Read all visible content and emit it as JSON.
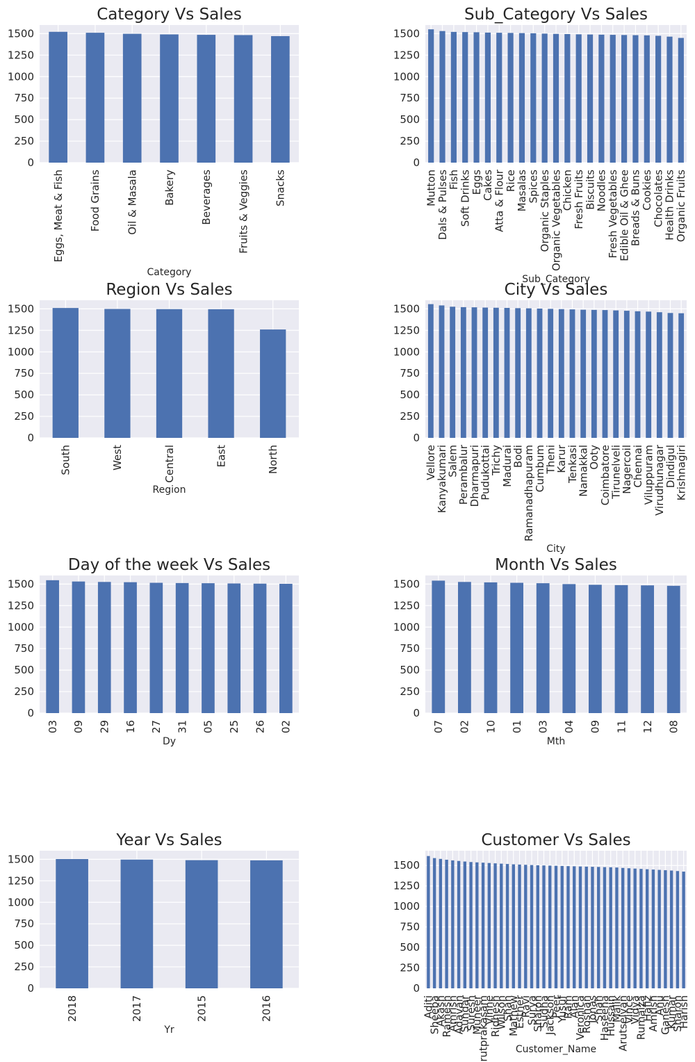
{
  "colors": {
    "bar": "#4c72b0",
    "plot_bg": "#eaeaf2",
    "grid": "#ffffff",
    "text": "#262626"
  },
  "chart_data": [
    {
      "type": "bar",
      "title": "Category Vs Sales",
      "xlabel": "Category",
      "ylabel": "",
      "ylim": [
        0,
        1600
      ],
      "yticks": [
        0,
        250,
        500,
        750,
        1000,
        1250,
        1500
      ],
      "grid": true,
      "categories": [
        "Eggs, Meat & Fish",
        "Food Grains",
        "Oil & Masala",
        "Bakery",
        "Beverages",
        "Fruits & Veggies",
        "Snacks"
      ],
      "values": [
        1521,
        1510,
        1498,
        1491,
        1486,
        1483,
        1471
      ]
    },
    {
      "type": "bar",
      "title": "Sub_Category Vs Sales",
      "xlabel": "Sub_Category",
      "ylabel": "",
      "ylim": [
        0,
        1600
      ],
      "yticks": [
        0,
        250,
        500,
        750,
        1000,
        1250,
        1500
      ],
      "grid": true,
      "categories": [
        "Mutton",
        "Dals & Pulses",
        "Fish",
        "Soft Drinks",
        "Eggs",
        "Cakes",
        "Atta & Flour",
        "Rice",
        "Masalas",
        "Spices",
        "Organic Staples",
        "Organic Vegetables",
        "Chicken",
        "Fresh Fruits",
        "Biscuits",
        "Noodles",
        "Fresh Vegetables",
        "Edible Oil & Ghee",
        "Breads & Buns",
        "Cookies",
        "Chocolates",
        "Health Drinks",
        "Organic Fruits"
      ],
      "values": [
        1550,
        1530,
        1520,
        1518,
        1516,
        1512,
        1510,
        1508,
        1506,
        1504,
        1500,
        1497,
        1495,
        1492,
        1490,
        1488,
        1486,
        1484,
        1482,
        1480,
        1475,
        1465,
        1450
      ]
    },
    {
      "type": "bar",
      "title": "Region Vs Sales",
      "xlabel": "Region",
      "ylabel": "",
      "ylim": [
        0,
        1600
      ],
      "yticks": [
        0,
        250,
        500,
        750,
        1000,
        1250,
        1500
      ],
      "grid": true,
      "categories": [
        "South",
        "West",
        "Central",
        "East",
        "North"
      ],
      "values": [
        1510,
        1499,
        1497,
        1496,
        1260
      ]
    },
    {
      "type": "bar",
      "title": "City Vs Sales",
      "xlabel": "City",
      "ylabel": "",
      "ylim": [
        0,
        1600
      ],
      "yticks": [
        0,
        250,
        500,
        750,
        1000,
        1250,
        1500
      ],
      "grid": true,
      "categories": [
        "Vellore",
        "Kanyakumari",
        "Salem",
        "Perambalur",
        "Dharmapuri",
        "Pudukottai",
        "Trichy",
        "Madurai",
        "Bodi",
        "Ramanadhapuram",
        "Cumbum",
        "Theni",
        "Karur",
        "Tenkasi",
        "Namakkal",
        "Ooty",
        "Coimbatore",
        "Tirunelveli",
        "Nagercoil",
        "Chennai",
        "Viluppuram",
        "Virudhunagar",
        "Dindigul",
        "Krishnagiri"
      ],
      "values": [
        1555,
        1540,
        1525,
        1520,
        1518,
        1515,
        1513,
        1511,
        1508,
        1506,
        1503,
        1500,
        1497,
        1494,
        1490,
        1488,
        1486,
        1482,
        1478,
        1472,
        1468,
        1461,
        1452,
        1449
      ]
    },
    {
      "type": "bar",
      "title": "Day of the week Vs Sales",
      "xlabel": "Dy",
      "ylabel": "",
      "ylim": [
        0,
        1600
      ],
      "yticks": [
        0,
        250,
        500,
        750,
        1000,
        1250,
        1500
      ],
      "grid": true,
      "categories": [
        "03",
        "09",
        "29",
        "16",
        "27",
        "31",
        "05",
        "25",
        "26",
        "02"
      ],
      "values": [
        1545,
        1530,
        1525,
        1522,
        1515,
        1512,
        1510,
        1507,
        1505,
        1503
      ]
    },
    {
      "type": "bar",
      "title": "Month Vs Sales",
      "xlabel": "Mth",
      "ylabel": "",
      "ylim": [
        0,
        1600
      ],
      "yticks": [
        0,
        250,
        500,
        750,
        1000,
        1250,
        1500
      ],
      "grid": true,
      "categories": [
        "07",
        "02",
        "10",
        "01",
        "03",
        "04",
        "09",
        "11",
        "12",
        "08"
      ],
      "values": [
        1540,
        1525,
        1520,
        1515,
        1510,
        1500,
        1492,
        1488,
        1485,
        1480
      ]
    },
    {
      "type": "bar",
      "title": "Year Vs Sales",
      "xlabel": "Yr",
      "ylabel": "",
      "ylim": [
        0,
        1600
      ],
      "yticks": [
        0,
        250,
        500,
        750,
        1000,
        1250,
        1500
      ],
      "grid": true,
      "categories": [
        "2018",
        "2017",
        "2015",
        "2016"
      ],
      "values": [
        1503,
        1497,
        1490,
        1488
      ]
    },
    {
      "type": "bar",
      "title": "Customer Vs Sales",
      "xlabel": "Customer_Name",
      "ylabel": "",
      "ylim": [
        0,
        1680
      ],
      "yticks": [
        0,
        250,
        500,
        750,
        1000,
        1250,
        1500
      ],
      "grid": true,
      "categories": [
        "Aditi",
        "Sheeba",
        "Akash",
        "Ramesh",
        "Amrish",
        "Adavan",
        "Sundar",
        "Suresh",
        "Muneer",
        "Arutprakasam",
        "Vinne",
        "Ridhesh",
        "Wilson",
        "Shah",
        "Mathew",
        "Esther",
        "Ravi",
        "Surya",
        "Sharon",
        "Sudha",
        "Jackson",
        "Peer",
        "Yusuf",
        "Ram",
        "Alan",
        "Veronica",
        "Roshan",
        "Jonas",
        "Shah",
        "Haseena",
        "Hussain",
        "Malik",
        "Arutselvan",
        "Vince",
        "Vidya",
        "Rumaiza",
        "Hafiz",
        "Amrish",
        "Anu",
        "Ganesh",
        "Kumar",
        "Sharon",
        "Harish"
      ],
      "values": [
        1615,
        1590,
        1580,
        1570,
        1562,
        1555,
        1548,
        1542,
        1538,
        1534,
        1530,
        1526,
        1522,
        1518,
        1514,
        1511,
        1508,
        1505,
        1502,
        1500,
        1498,
        1496,
        1494,
        1492,
        1490,
        1488,
        1486,
        1484,
        1482,
        1480,
        1478,
        1475,
        1470,
        1466,
        1462,
        1458,
        1454,
        1450,
        1446,
        1442,
        1438,
        1432,
        1425
      ]
    }
  ]
}
